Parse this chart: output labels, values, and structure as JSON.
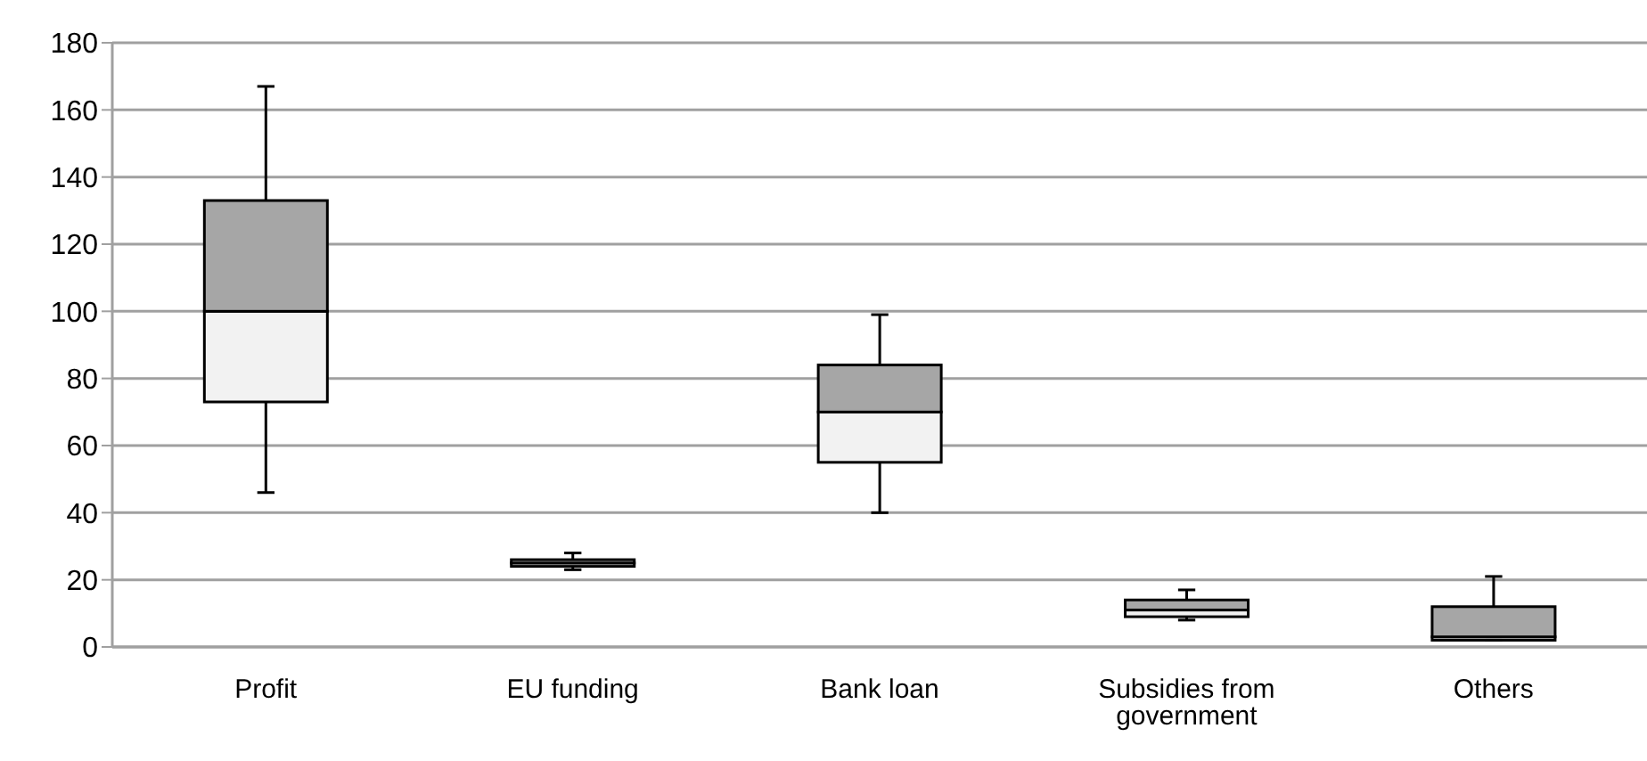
{
  "chart_data": {
    "type": "box",
    "categories": [
      "Profit",
      "EU funding",
      "Bank loan",
      "Subsidies from government",
      "Others"
    ],
    "boxes": [
      {
        "low": 46,
        "q1": 73,
        "median": 100,
        "q3": 133,
        "high": 167
      },
      {
        "low": 23,
        "q1": 24,
        "median": 25,
        "q3": 26,
        "high": 28
      },
      {
        "low": 40,
        "q1": 55,
        "median": 70,
        "q3": 84,
        "high": 99
      },
      {
        "low": 8,
        "q1": 9,
        "median": 11,
        "q3": 14,
        "high": 17
      },
      {
        "low": 2,
        "q1": 2,
        "median": 3,
        "q3": 12,
        "high": 21
      }
    ],
    "ylim": [
      0,
      180
    ],
    "yticks": [
      0,
      20,
      40,
      60,
      80,
      100,
      120,
      140,
      160,
      180
    ],
    "grid": "y"
  }
}
